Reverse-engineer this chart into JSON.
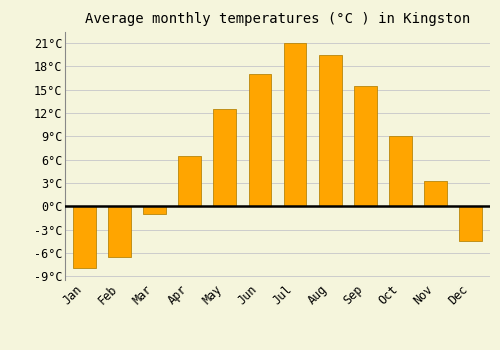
{
  "title": "Average monthly temperatures (°C ) in Kingston",
  "months": [
    "Jan",
    "Feb",
    "Mar",
    "Apr",
    "May",
    "Jun",
    "Jul",
    "Aug",
    "Sep",
    "Oct",
    "Nov",
    "Dec"
  ],
  "values": [
    -8.0,
    -6.5,
    -1.0,
    6.5,
    12.5,
    17.0,
    21.0,
    19.5,
    15.5,
    9.0,
    3.2,
    -4.5
  ],
  "bar_color": "#FFA500",
  "bar_edge_color": "#B8860B",
  "background_color": "#F5F5DC",
  "grid_color": "#CCCCCC",
  "ylim": [
    -9.5,
    22.5
  ],
  "yticks": [
    -9,
    -6,
    -3,
    0,
    3,
    6,
    9,
    12,
    15,
    18,
    21
  ],
  "zero_line_color": "#000000",
  "title_fontsize": 10,
  "tick_fontsize": 8.5
}
